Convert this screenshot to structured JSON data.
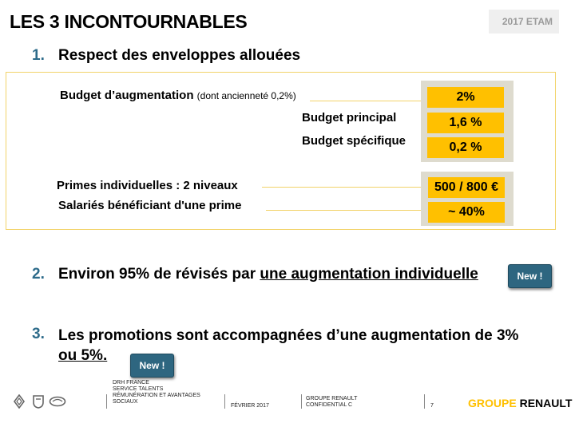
{
  "header": {
    "title": "LES 3 INCONTOURNABLES",
    "year_tab": "2017 ETAM"
  },
  "section1": {
    "number": "1.",
    "heading": "Respect des enveloppes allouées",
    "budget_aug_label": "Budget d’augmentation",
    "budget_aug_note": "(dont ancienneté 0,2%)",
    "budget_principal_label": "Budget principal",
    "budget_specific_label": "Budget spécifique",
    "primes_label": "Primes individuelles : 2 niveaux",
    "salaries_label": "Salariés bénéficiant d'une prime",
    "values": {
      "budget_aug": "2%",
      "budget_principal": "1,6 %",
      "budget_specific": "0,2 %",
      "primes": "500 / 800 €",
      "salaries": "~ 40%"
    },
    "colors": {
      "value_fill": "#ffc000",
      "panel_bg": "#dedbce",
      "box_border": "#f2d36a"
    }
  },
  "section2": {
    "number": "2.",
    "text_plain": "Environ 95% de révisés par ",
    "text_underlined": "une augmentation individuelle",
    "badge": "New !"
  },
  "section3": {
    "number": "3.",
    "line1": "Les promotions sont accompagnées d’une augmentation de 3%",
    "line2_underlined": "ou 5%.",
    "badge": "New !"
  },
  "footer": {
    "dept_line1": "DRH FRANCE",
    "dept_line2": "SERVICE TALENTS",
    "dept_line3": "RÉMUNÉRATION ET AVANTAGES",
    "dept_line4": "SOCIAUX",
    "date": "FÉVRIER 2017",
    "group_line1": "GROUPE RENAULT",
    "group_line2": "CONFIDENTIAL C",
    "page": "7",
    "logo_part1": "GROUPE",
    "logo_part2": " RENAULT",
    "icons": [
      "renault-logo-icon",
      "dacia-logo-icon",
      "samsung-logo-icon"
    ]
  }
}
